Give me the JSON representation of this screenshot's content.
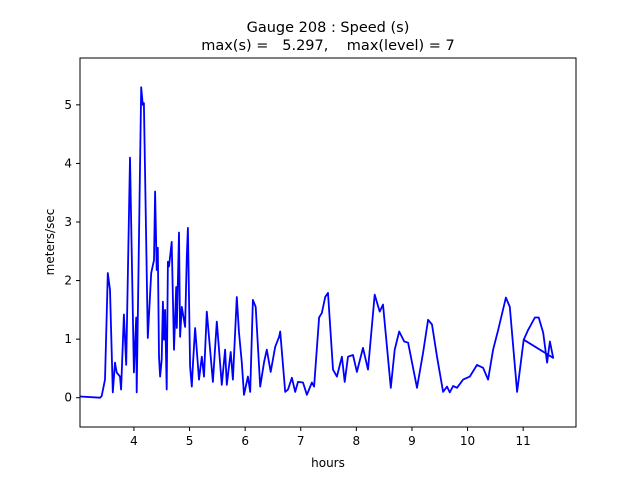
{
  "chart_data": {
    "type": "line",
    "title": "Gauge 208 : Speed (s)",
    "subtitle": "max(s) =   5.297,    max(level) = 7",
    "xlabel": "hours",
    "ylabel": "meters/sec",
    "xlim": [
      3.03,
      11.95
    ],
    "ylim": [
      -0.5,
      5.8
    ],
    "xticks": [
      4,
      5,
      6,
      7,
      8,
      9,
      10,
      11
    ],
    "yticks": [
      0,
      1,
      2,
      3,
      4,
      5
    ],
    "grid": false,
    "series": [
      {
        "name": "speed",
        "color": "#0000ff",
        "x": [
          3.03,
          3.39,
          3.42,
          3.48,
          3.53,
          3.57,
          3.62,
          3.66,
          3.69,
          3.75,
          3.77,
          3.82,
          3.86,
          3.93,
          4.0,
          4.04,
          4.05,
          4.13,
          4.16,
          4.18,
          4.25,
          4.31,
          4.36,
          4.38,
          4.41,
          4.43,
          4.45,
          4.47,
          4.5,
          4.52,
          4.54,
          4.56,
          4.59,
          4.61,
          4.63,
          4.68,
          4.72,
          4.76,
          4.77,
          4.81,
          4.83,
          4.86,
          4.92,
          4.95,
          4.97,
          5.01,
          5.04,
          5.06,
          5.1,
          5.17,
          5.22,
          5.26,
          5.31,
          5.37,
          5.42,
          5.49,
          5.58,
          5.64,
          5.67,
          5.74,
          5.78,
          5.85,
          5.89,
          5.94,
          5.98,
          6.05,
          6.09,
          6.14,
          6.19,
          6.27,
          6.34,
          6.39,
          6.46,
          6.54,
          6.61,
          6.63,
          6.72,
          6.77,
          6.84,
          6.9,
          6.95,
          7.04,
          7.11,
          7.2,
          7.24,
          7.33,
          7.38,
          7.44,
          7.49,
          7.58,
          7.65,
          7.74,
          7.79,
          7.85,
          7.94,
          8.01,
          8.12,
          8.21,
          8.33,
          8.42,
          8.48,
          8.62,
          8.69,
          8.77,
          8.86,
          8.93,
          9.09,
          9.2,
          9.29,
          9.36,
          9.45,
          9.56,
          9.63,
          9.68,
          9.74,
          9.81,
          9.92,
          10.04,
          10.17,
          10.28,
          10.37,
          10.46,
          10.55,
          10.69,
          10.76,
          10.89,
          11.01,
          11.09,
          11.21,
          11.28,
          11.36,
          11.43,
          11.48,
          11.54,
          11.01
        ],
        "y": [
          0.02,
          0.0,
          0.03,
          0.31,
          2.13,
          1.84,
          0.09,
          0.6,
          0.43,
          0.36,
          0.14,
          1.42,
          0.56,
          4.1,
          0.43,
          1.37,
          0.09,
          5.3,
          5.0,
          5.03,
          1.02,
          2.13,
          2.35,
          3.52,
          2.18,
          2.56,
          0.7,
          0.36,
          0.65,
          1.64,
          0.99,
          1.5,
          0.14,
          2.32,
          2.24,
          2.66,
          0.82,
          1.89,
          1.19,
          2.82,
          1.04,
          1.55,
          1.21,
          2.41,
          2.9,
          0.53,
          0.19,
          0.56,
          1.19,
          0.31,
          0.7,
          0.36,
          1.47,
          0.82,
          0.27,
          1.3,
          0.22,
          0.82,
          0.22,
          0.78,
          0.31,
          1.72,
          1.11,
          0.6,
          0.05,
          0.36,
          0.1,
          1.67,
          1.55,
          0.19,
          0.61,
          0.82,
          0.44,
          0.87,
          1.04,
          1.13,
          0.1,
          0.14,
          0.34,
          0.1,
          0.27,
          0.26,
          0.05,
          0.26,
          0.19,
          1.37,
          1.45,
          1.72,
          1.79,
          0.48,
          0.36,
          0.7,
          0.27,
          0.7,
          0.73,
          0.44,
          0.85,
          0.48,
          1.76,
          1.47,
          1.59,
          0.17,
          0.82,
          1.13,
          0.96,
          0.94,
          0.17,
          0.77,
          1.33,
          1.25,
          0.7,
          0.1,
          0.19,
          0.09,
          0.2,
          0.17,
          0.31,
          0.36,
          0.56,
          0.51,
          0.31,
          0.82,
          1.16,
          1.71,
          1.55,
          0.1,
          0.99,
          1.16,
          1.37,
          1.37,
          1.11,
          0.6,
          0.96,
          0.68,
          0.99
        ]
      }
    ]
  }
}
